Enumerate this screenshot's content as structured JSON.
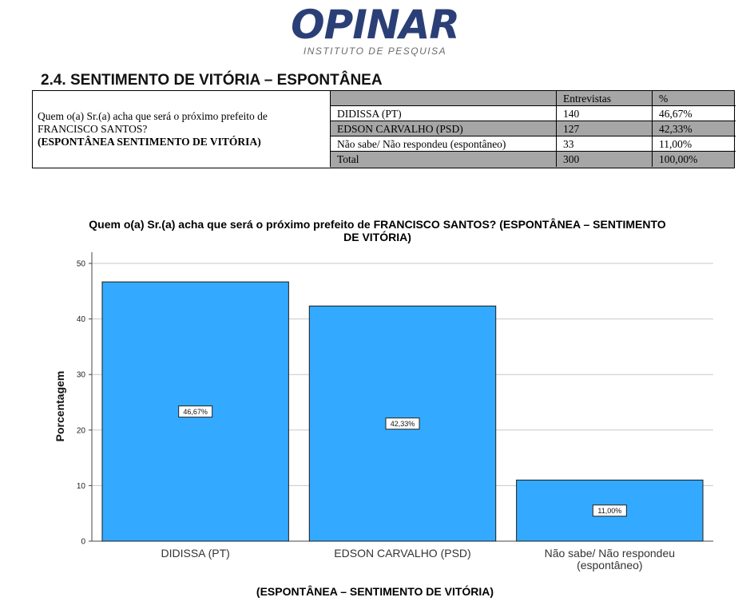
{
  "logo": {
    "brand": "OPINAR",
    "tagline": "INSTITUTO DE PESQUISA"
  },
  "section": {
    "title": "2.4. SENTIMENTO DE VITÓRIA – ESPONTÂNEA"
  },
  "table": {
    "question_line1": "Quem o(a) Sr.(a) acha que será o próximo prefeito de",
    "question_line2": "FRANCISCO SANTOS?",
    "question_line3": "(ESPONTÂNEA SENTIMENTO DE VITÓRIA)",
    "headers": [
      "Entrevistas",
      "%"
    ],
    "rows": [
      {
        "label": "DIDISSA (PT)",
        "count": "140",
        "pct": "46,67%"
      },
      {
        "label": "EDSON CARVALHO (PSD)",
        "count": "127",
        "pct": "42,33%"
      },
      {
        "label": "Não sabe/ Não respondeu (espontâneo)",
        "count": "33",
        "pct": "11,00%"
      },
      {
        "label": "Total",
        "count": "300",
        "pct": "100,00%"
      }
    ]
  },
  "chart_data": {
    "type": "bar",
    "title": "Quem o(a) Sr.(a) acha que será o próximo prefeito de FRANCISCO SANTOS? (ESPONTÂNEA – SENTIMENTO DE VITÓRIA)",
    "title_line1": "Quem o(a) Sr.(a) acha que será o próximo prefeito de FRANCISCO SANTOS? (ESPONTÂNEA – SENTIMENTO",
    "title_line2": "DE VITÓRIA)",
    "categories": [
      "DIDISSA (PT)",
      "EDSON CARVALHO (PSD)",
      "Não sabe/ Não respondeu (espontâneo)"
    ],
    "category_lines": [
      [
        "DIDISSA (PT)"
      ],
      [
        "EDSON CARVALHO (PSD)"
      ],
      [
        "Não sabe/ Não respondeu",
        "(espontâneo)"
      ]
    ],
    "values": [
      46.67,
      42.33,
      11.0
    ],
    "data_labels": [
      "46,67%",
      "42,33%",
      "11,00%"
    ],
    "xlabel": "(ESPONTÂNEA – SENTIMENTO DE VITÓRIA)",
    "ylabel": "Porcentagem",
    "ylim": [
      0,
      50
    ],
    "yticks": [
      0,
      10,
      20,
      30,
      40,
      50
    ],
    "grid": true,
    "bar_color": "#33aaff"
  }
}
